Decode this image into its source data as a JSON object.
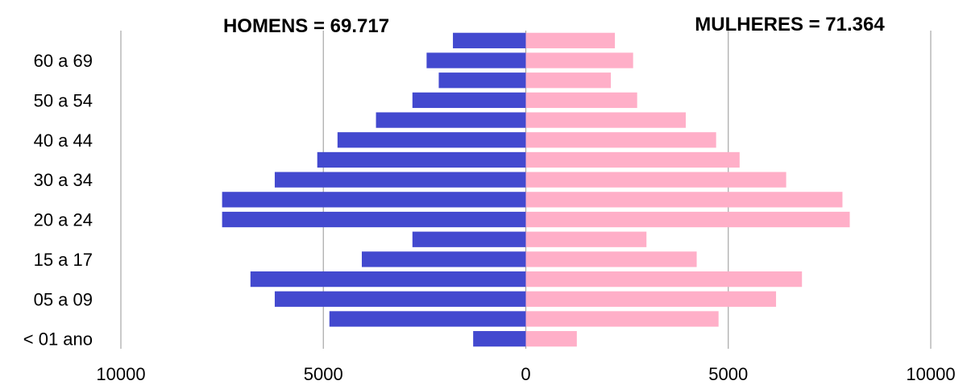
{
  "chart_data": {
    "type": "bar",
    "orientation": "horizontal",
    "layout": "population-pyramid",
    "left_title": "HOMENS = 69.717",
    "right_title": "MULHERES = 71.364",
    "y_tick_labels": [
      "60 a 69",
      "50 a 54",
      "40 a 44",
      "30 a 34",
      "20 a 24",
      "15 a 17",
      "05 a 09",
      "< 01 ano"
    ],
    "x_tick_labels": [
      "10000",
      "5000",
      "0",
      "5000",
      "10000"
    ],
    "xlim": [
      -10000,
      10000
    ],
    "grid": true,
    "series": [
      {
        "color": "#4349CF",
        "values": [
          1800,
          2450,
          2150,
          2800,
          3700,
          4650,
          5150,
          6200,
          7500,
          7500,
          2800,
          4050,
          6800,
          6200,
          4850,
          1300
        ]
      },
      {
        "color": "#FFAFC8",
        "values": [
          2200,
          2650,
          2100,
          2750,
          3950,
          4700,
          5280,
          6430,
          7820,
          8000,
          2980,
          4220,
          6820,
          6180,
          4760,
          1260
        ]
      }
    ]
  }
}
